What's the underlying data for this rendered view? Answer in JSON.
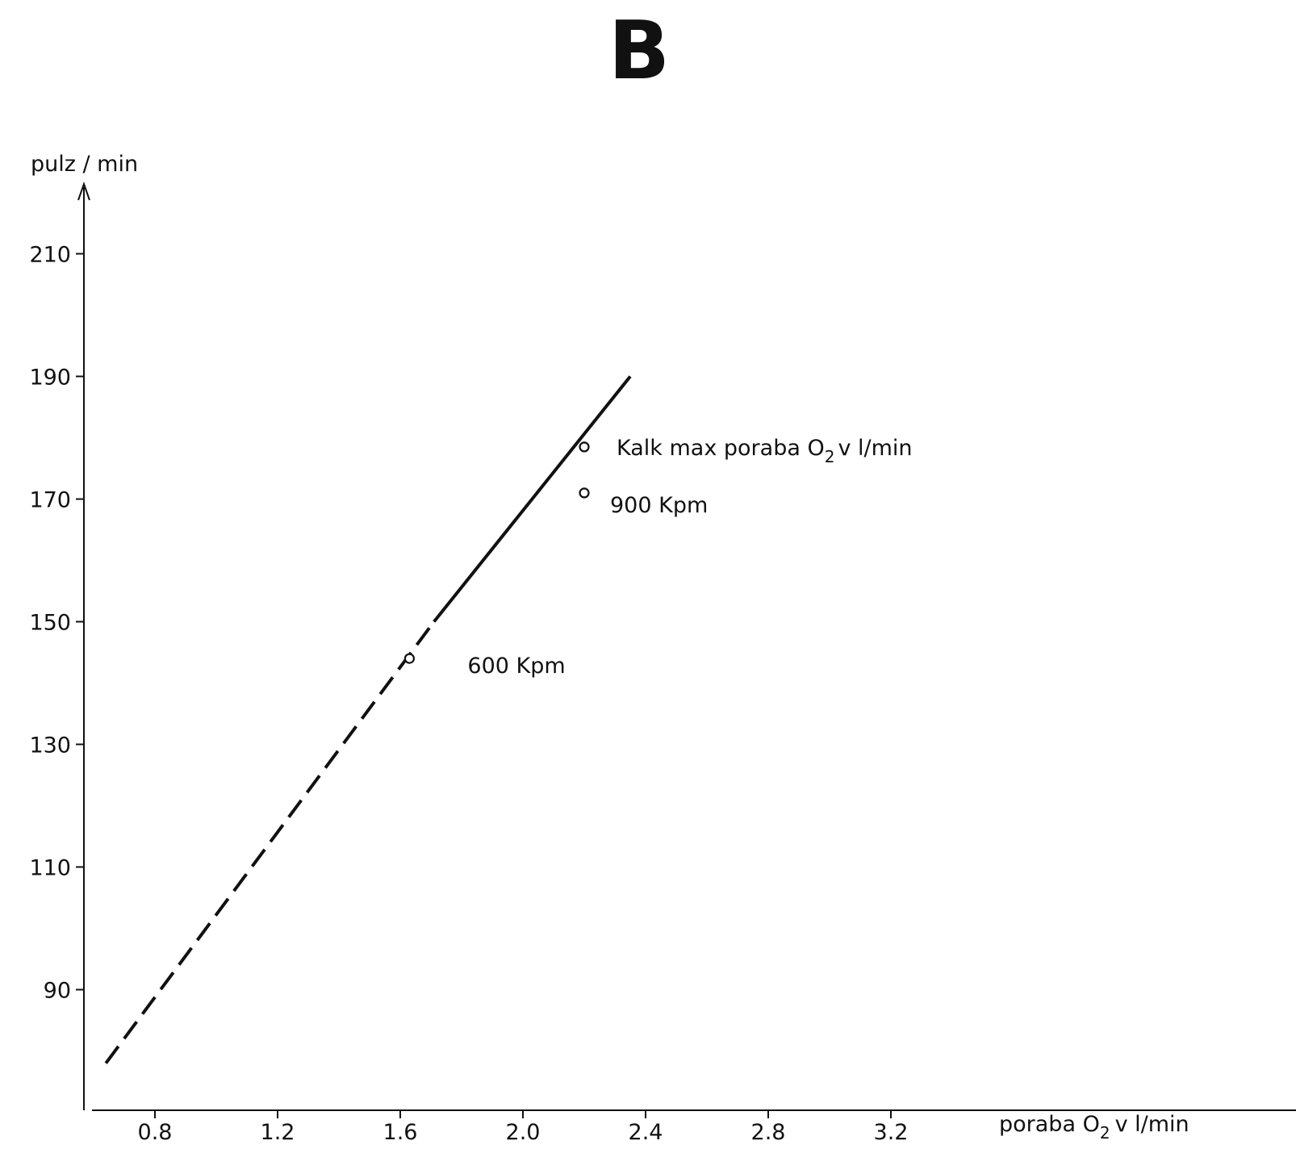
{
  "chart_data": {
    "type": "scatter",
    "title": "B",
    "ylabel": "pulz / min",
    "xlabel_main": "poraba O",
    "xlabel_sub": "2",
    "xlabel_tail": "v l/min",
    "xlim": [
      0.6,
      3.9
    ],
    "ylim": [
      78,
      220
    ],
    "x_ticks": [
      0.8,
      1.2,
      1.6,
      2.0,
      2.4,
      2.8,
      3.2
    ],
    "x_tick_labels": [
      "0.8",
      "1.2",
      "1.6",
      "2.0",
      "2.4",
      "2.8",
      "3.2"
    ],
    "y_ticks": [
      90,
      110,
      130,
      150,
      170,
      190,
      210
    ],
    "y_tick_labels": [
      "90",
      "110",
      "130",
      "150",
      "170",
      "190",
      "210"
    ],
    "grid": false,
    "points": [
      {
        "x": 1.63,
        "y": 144,
        "label": "600 Kpm"
      },
      {
        "x": 2.2,
        "y": 171,
        "label": "900 Kpm"
      },
      {
        "x": 2.2,
        "y": 178.5,
        "label_main": "Kalk max poraba O",
        "label_sub": "2",
        "label_tail": "v l/min"
      }
    ],
    "fit_line": {
      "dashed_segment": {
        "x": [
          0.64,
          1.71
        ],
        "y": [
          78,
          150
        ]
      },
      "solid_segment": {
        "x": [
          1.71,
          2.35
        ],
        "y": [
          150,
          190
        ]
      }
    }
  }
}
